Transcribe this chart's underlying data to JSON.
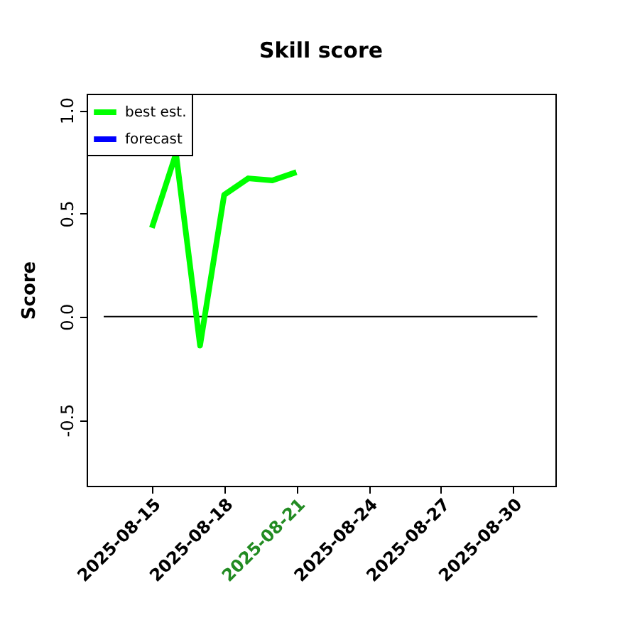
{
  "chart_data": {
    "type": "line",
    "title": "Skill score",
    "ylabel": "Score",
    "xlim": [
      "2025-08-12T07:00",
      "2025-08-31T18:00"
    ],
    "xticks": [
      "2025-08-15",
      "2025-08-18",
      "2025-08-21",
      "2025-08-24",
      "2025-08-27",
      "2025-08-30"
    ],
    "ylim": [
      -0.82,
      1.08
    ],
    "yticks": [
      -0.5,
      {
        "value": 0,
        "label": "0.0"
      },
      0.5,
      {
        "value": 1,
        "label": "1.0"
      }
    ],
    "series": [
      {
        "name": "best est.",
        "color": "#00ff00",
        "x": [
          "2025-08-15",
          "2025-08-16",
          "2025-08-17",
          "2025-08-18",
          "2025-08-19",
          "2025-08-20",
          "2025-08-21"
        ],
        "values": [
          0.43,
          0.79,
          -0.14,
          0.59,
          0.67,
          0.66,
          0.7
        ]
      },
      {
        "name": "forecast",
        "color": "#0000ff"
      },
      {
        "color": "#000000",
        "x": [
          "2025-08-13",
          "2025-08-31"
        ],
        "values": [
          0,
          0
        ]
      }
    ],
    "legend": "top left",
    "grid": false
  }
}
